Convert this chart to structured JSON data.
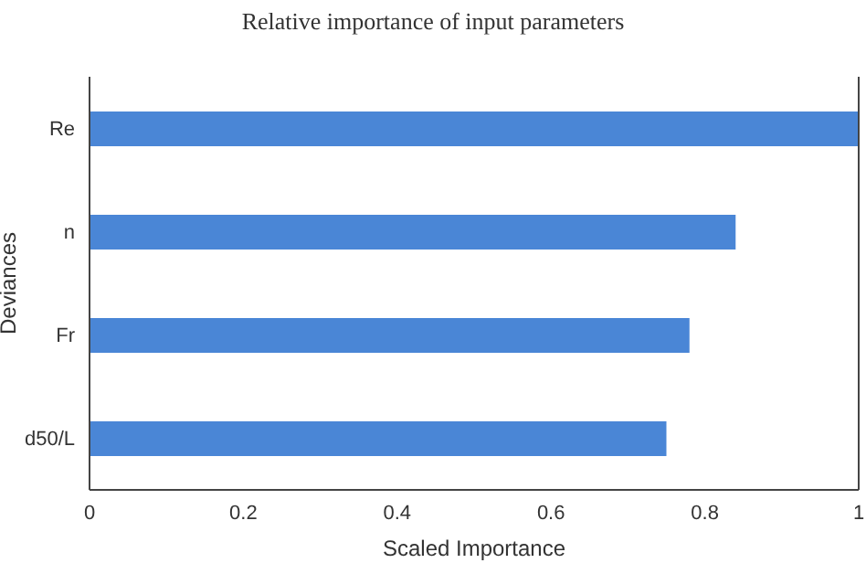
{
  "chart_data": {
    "type": "bar",
    "orientation": "horizontal",
    "title": "Relative importance of input parameters",
    "xlabel": "Scaled Importance",
    "ylabel": "Deviances",
    "categories": [
      "Re",
      "n",
      "Fr",
      "d50/L"
    ],
    "values": [
      1,
      0.84,
      0.78,
      0.75
    ],
    "color": "#4a86d6",
    "xlim": [
      0,
      1
    ],
    "xticks": [
      0,
      0.2,
      0.4,
      0.6,
      0.8,
      1
    ],
    "grid": false
  }
}
